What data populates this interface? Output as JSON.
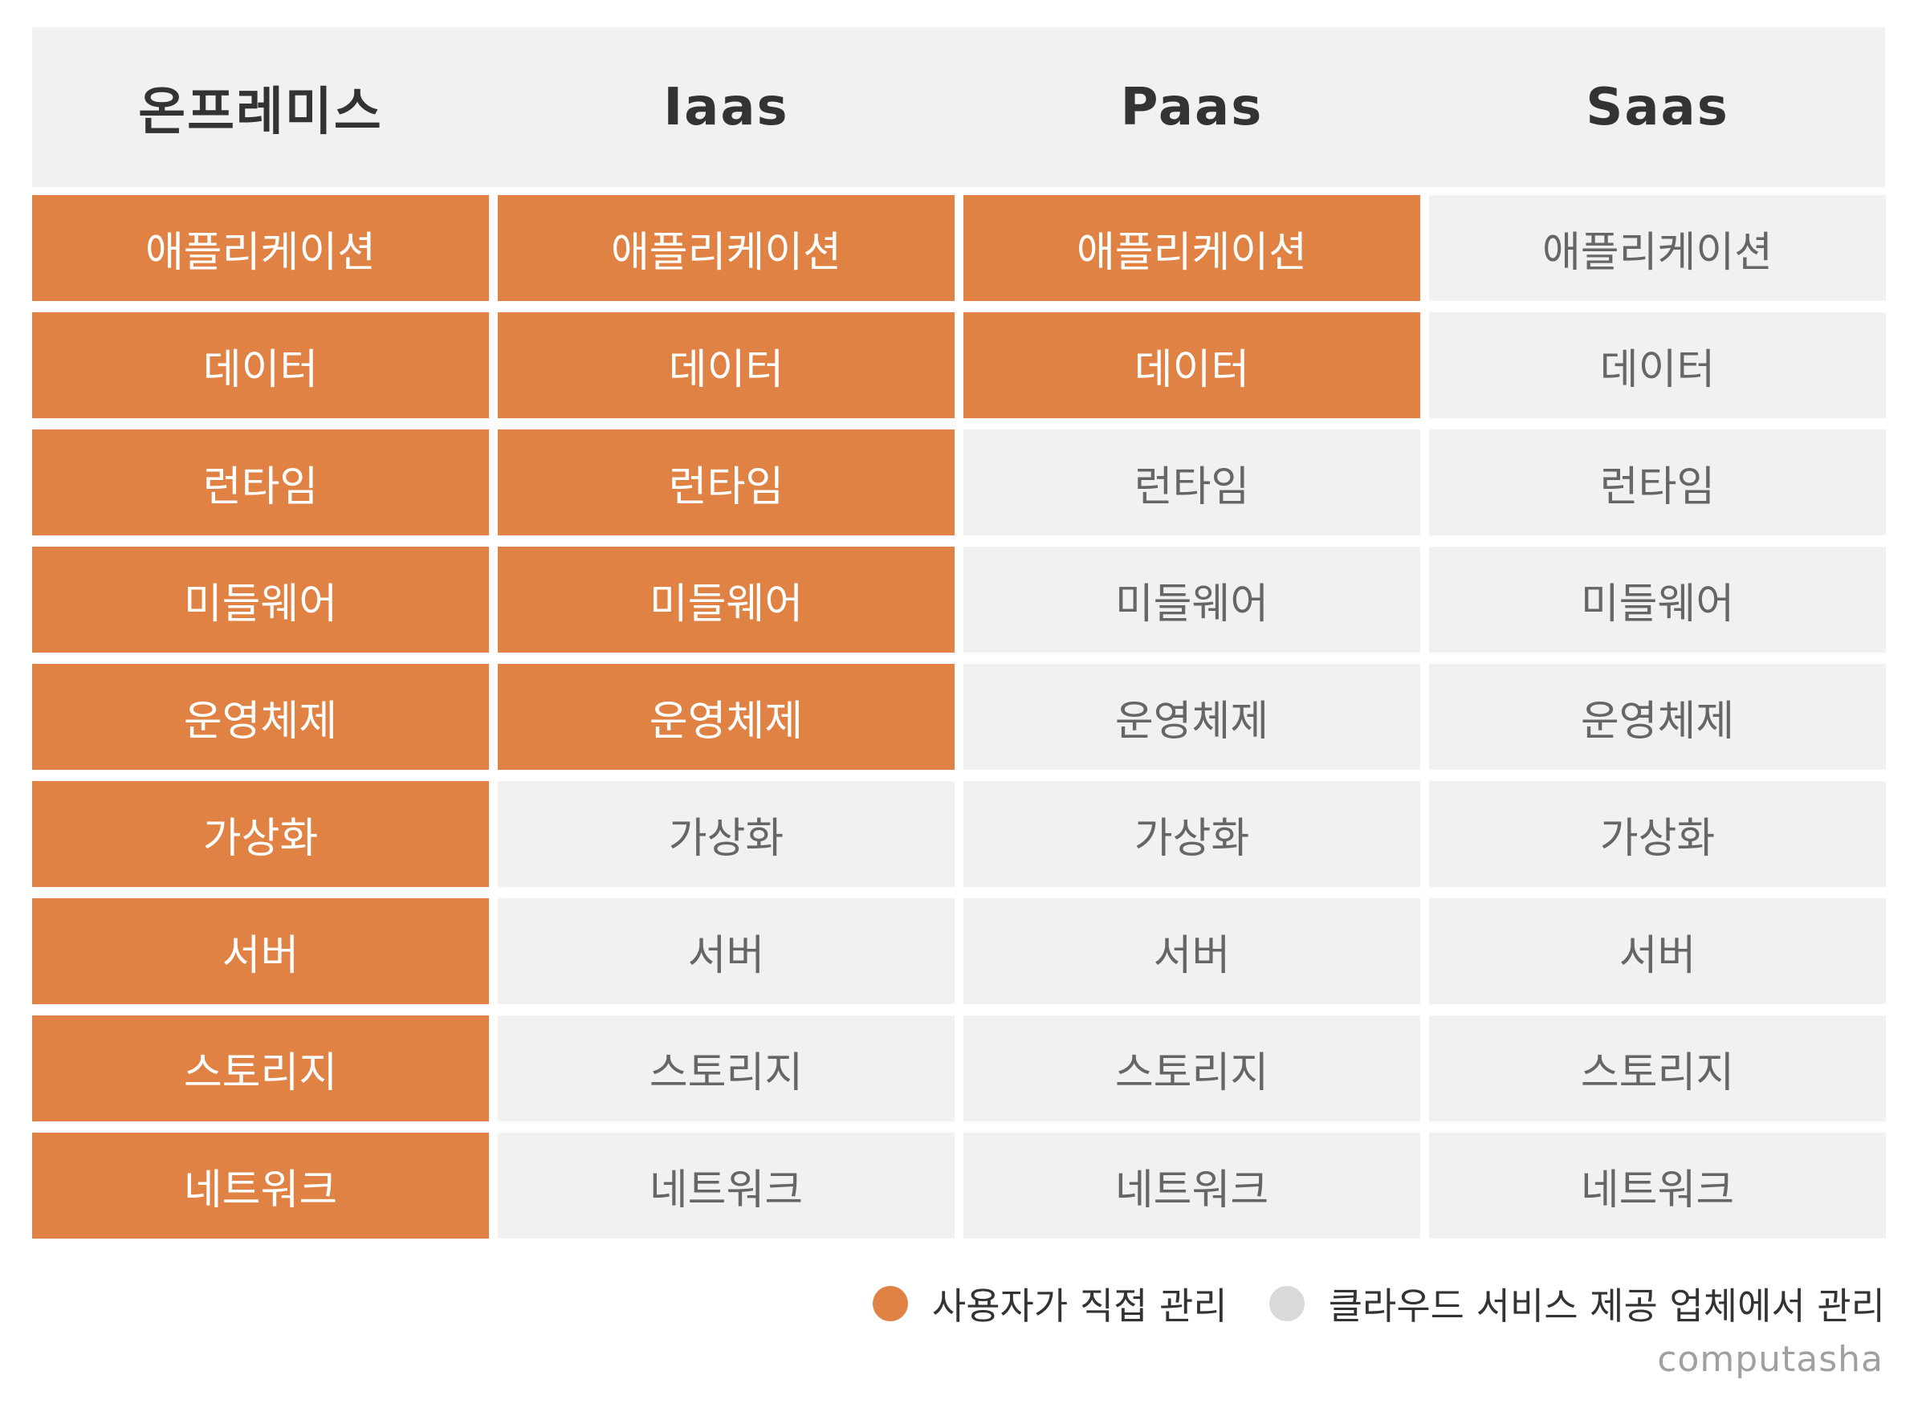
{
  "columns": [
    {
      "header": "온프레미스",
      "layers": [
        "애플리케이션",
        "데이터",
        "런타임",
        "미들웨어",
        "운영체제",
        "가상화",
        "서버",
        "스토리지",
        "네트워크"
      ],
      "user_managed": [
        true,
        true,
        true,
        true,
        true,
        true,
        true,
        true,
        true
      ]
    },
    {
      "header": "Iaas",
      "layers": [
        "애플리케이션",
        "데이터",
        "런타임",
        "미들웨어",
        "운영체제",
        "가상화",
        "서버",
        "스토리지",
        "네트워크"
      ],
      "user_managed": [
        true,
        true,
        true,
        true,
        true,
        false,
        false,
        false,
        false
      ]
    },
    {
      "header": "Paas",
      "layers": [
        "애플리케이션",
        "데이터",
        "런타임",
        "미들웨어",
        "운영체제",
        "가상화",
        "서버",
        "스토리지",
        "네트워크"
      ],
      "user_managed": [
        true,
        true,
        false,
        false,
        false,
        false,
        false,
        false,
        false
      ]
    },
    {
      "header": "Saas",
      "layers": [
        "애플리케이션",
        "데이터",
        "런타임",
        "미들웨어",
        "운영체제",
        "가상화",
        "서버",
        "스토리지",
        "네트워크"
      ],
      "user_managed": [
        false,
        false,
        false,
        false,
        false,
        false,
        false,
        false,
        false
      ]
    }
  ],
  "legend": {
    "user": {
      "label": "사용자가 직접 관리",
      "color": "#e08244"
    },
    "provider": {
      "label": "클라우드 서비스 제공 업체에서 관리",
      "color": "#d9d9d9"
    }
  },
  "colors": {
    "user_fill": "#e08244",
    "provider_fill": "#f1f1f1",
    "header_fill": "#f1f1f1"
  },
  "brand": "computasha"
}
